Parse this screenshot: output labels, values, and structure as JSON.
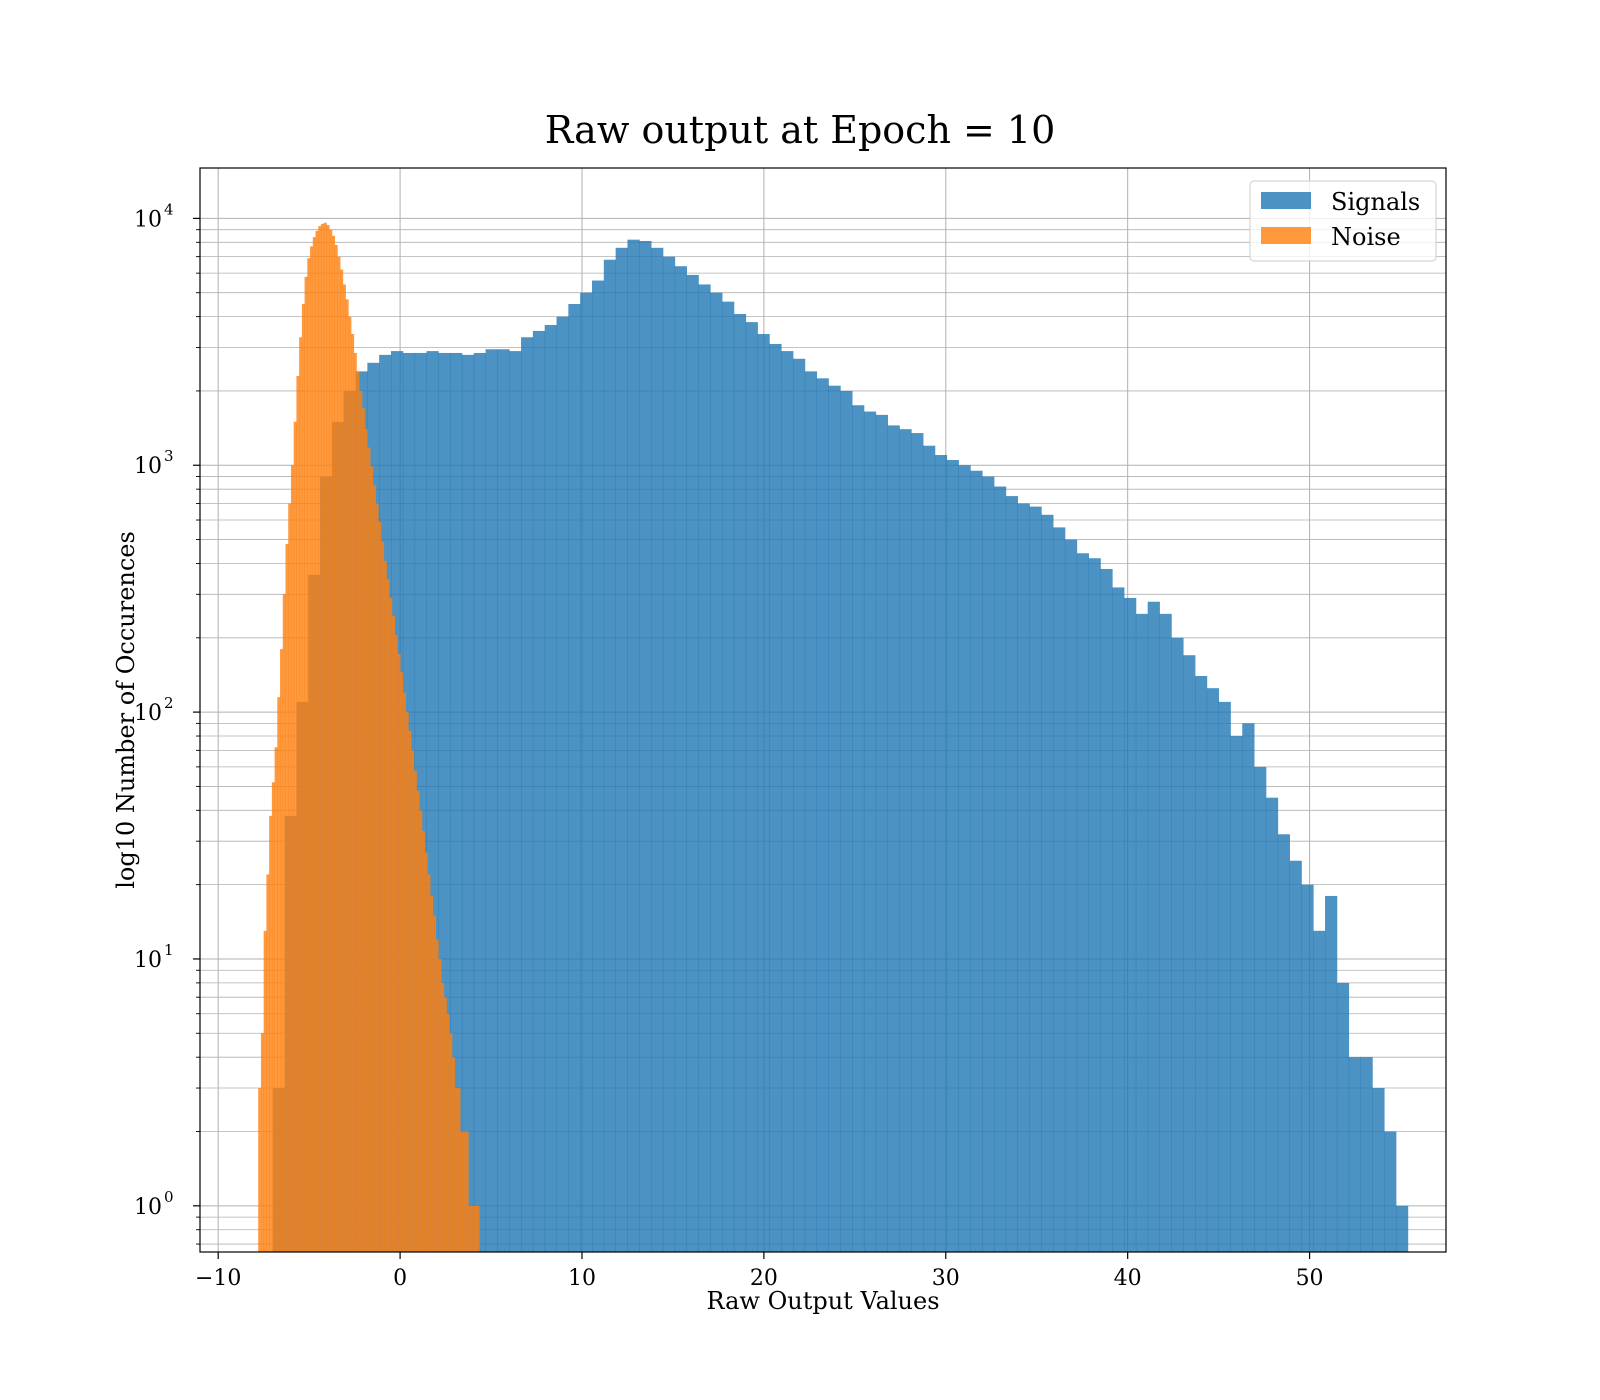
{
  "chart_data": {
    "type": "histogram",
    "title": "Raw output at Epoch = 10",
    "xlabel": "Raw Output Values",
    "ylabel": "log10 Number of Occurences",
    "xlim": [
      -11,
      57.5
    ],
    "ylim": [
      0.65,
      16000
    ],
    "yscale": "log",
    "grid": true,
    "legend_position": "top-right",
    "x_ticks": [
      -10,
      0,
      10,
      20,
      30,
      40,
      50
    ],
    "y_ticks": [
      {
        "value": 1,
        "base": "10",
        "exp": "0"
      },
      {
        "value": 10,
        "base": "10",
        "exp": "1"
      },
      {
        "value": 100,
        "base": "10",
        "exp": "2"
      },
      {
        "value": 1000,
        "base": "10",
        "exp": "3"
      },
      {
        "value": 10000,
        "base": "10",
        "exp": "4"
      }
    ],
    "series": [
      {
        "name": "Signals",
        "color": "#1f77b4",
        "opacity": 0.8,
        "bins": [
          [
            -7.0,
            3
          ],
          [
            -6.35,
            38
          ],
          [
            -5.7,
            110
          ],
          [
            -5.05,
            360
          ],
          [
            -4.4,
            900
          ],
          [
            -3.75,
            1500
          ],
          [
            -3.1,
            2000
          ],
          [
            -2.45,
            2400
          ],
          [
            -1.8,
            2600
          ],
          [
            -1.15,
            2800
          ],
          [
            -0.5,
            2900
          ],
          [
            0.15,
            2850
          ],
          [
            0.8,
            2850
          ],
          [
            1.45,
            2900
          ],
          [
            2.1,
            2850
          ],
          [
            2.75,
            2850
          ],
          [
            3.4,
            2800
          ],
          [
            4.05,
            2850
          ],
          [
            4.7,
            2950
          ],
          [
            5.35,
            2950
          ],
          [
            6.0,
            2900
          ],
          [
            6.65,
            3300
          ],
          [
            7.3,
            3500
          ],
          [
            7.95,
            3700
          ],
          [
            8.6,
            4000
          ],
          [
            9.25,
            4500
          ],
          [
            9.9,
            5000
          ],
          [
            10.55,
            5600
          ],
          [
            11.2,
            6800
          ],
          [
            11.85,
            7600
          ],
          [
            12.5,
            8200
          ],
          [
            13.15,
            8100
          ],
          [
            13.8,
            7600
          ],
          [
            14.45,
            7000
          ],
          [
            15.1,
            6400
          ],
          [
            15.75,
            5900
          ],
          [
            16.4,
            5400
          ],
          [
            17.05,
            5000
          ],
          [
            17.7,
            4600
          ],
          [
            18.35,
            4100
          ],
          [
            19.0,
            3800
          ],
          [
            19.65,
            3400
          ],
          [
            20.3,
            3100
          ],
          [
            20.95,
            2900
          ],
          [
            21.6,
            2700
          ],
          [
            22.25,
            2400
          ],
          [
            22.9,
            2250
          ],
          [
            23.55,
            2100
          ],
          [
            24.2,
            2000
          ],
          [
            24.85,
            1750
          ],
          [
            25.5,
            1650
          ],
          [
            26.15,
            1600
          ],
          [
            26.8,
            1450
          ],
          [
            27.45,
            1400
          ],
          [
            28.1,
            1350
          ],
          [
            28.75,
            1200
          ],
          [
            29.4,
            1100
          ],
          [
            30.05,
            1050
          ],
          [
            30.7,
            1000
          ],
          [
            31.35,
            950
          ],
          [
            32.0,
            900
          ],
          [
            32.65,
            820
          ],
          [
            33.3,
            750
          ],
          [
            33.95,
            700
          ],
          [
            34.6,
            680
          ],
          [
            35.25,
            630
          ],
          [
            35.9,
            560
          ],
          [
            36.55,
            500
          ],
          [
            37.2,
            440
          ],
          [
            37.85,
            420
          ],
          [
            38.5,
            380
          ],
          [
            39.15,
            320
          ],
          [
            39.8,
            290
          ],
          [
            40.45,
            250
          ],
          [
            41.1,
            280
          ],
          [
            41.75,
            250
          ],
          [
            42.4,
            200
          ],
          [
            43.05,
            170
          ],
          [
            43.7,
            140
          ],
          [
            44.35,
            125
          ],
          [
            45.0,
            110
          ],
          [
            45.65,
            80
          ],
          [
            46.3,
            90
          ],
          [
            46.95,
            60
          ],
          [
            47.6,
            45
          ],
          [
            48.25,
            32
          ],
          [
            48.9,
            25
          ],
          [
            49.55,
            20
          ],
          [
            50.2,
            13
          ],
          [
            50.85,
            18
          ],
          [
            51.5,
            8
          ],
          [
            52.15,
            4
          ],
          [
            52.8,
            4
          ],
          [
            53.45,
            3
          ],
          [
            54.1,
            2
          ],
          [
            54.75,
            1
          ]
        ]
      },
      {
        "name": "Noise",
        "color": "#ff7f0e",
        "opacity": 0.8,
        "bins": [
          [
            -7.8,
            3
          ],
          [
            -7.65,
            5
          ],
          [
            -7.5,
            13
          ],
          [
            -7.35,
            22
          ],
          [
            -7.2,
            38
          ],
          [
            -7.05,
            52
          ],
          [
            -6.9,
            72
          ],
          [
            -6.75,
            115
          ],
          [
            -6.6,
            180
          ],
          [
            -6.45,
            300
          ],
          [
            -6.3,
            480
          ],
          [
            -6.15,
            700
          ],
          [
            -6.0,
            1000
          ],
          [
            -5.85,
            1500
          ],
          [
            -5.7,
            2300
          ],
          [
            -5.55,
            3300
          ],
          [
            -5.4,
            4500
          ],
          [
            -5.25,
            5800
          ],
          [
            -5.1,
            6900
          ],
          [
            -4.95,
            7700
          ],
          [
            -4.8,
            8400
          ],
          [
            -4.65,
            8900
          ],
          [
            -4.5,
            9300
          ],
          [
            -4.35,
            9500
          ],
          [
            -4.2,
            9600
          ],
          [
            -4.05,
            9400
          ],
          [
            -3.9,
            9000
          ],
          [
            -3.75,
            8500
          ],
          [
            -3.6,
            7800
          ],
          [
            -3.45,
            7000
          ],
          [
            -3.3,
            6200
          ],
          [
            -3.15,
            5400
          ],
          [
            -3.0,
            4700
          ],
          [
            -2.85,
            4000
          ],
          [
            -2.7,
            3400
          ],
          [
            -2.55,
            2850
          ],
          [
            -2.4,
            2400
          ],
          [
            -2.25,
            2000
          ],
          [
            -2.1,
            1700
          ],
          [
            -1.95,
            1400
          ],
          [
            -1.8,
            1180
          ],
          [
            -1.65,
            990
          ],
          [
            -1.5,
            830
          ],
          [
            -1.35,
            700
          ],
          [
            -1.2,
            590
          ],
          [
            -1.05,
            490
          ],
          [
            -0.9,
            410
          ],
          [
            -0.75,
            345
          ],
          [
            -0.6,
            290
          ],
          [
            -0.45,
            245
          ],
          [
            -0.3,
            205
          ],
          [
            -0.15,
            172
          ],
          [
            0.0,
            145
          ],
          [
            0.15,
            120
          ],
          [
            0.3,
            100
          ],
          [
            0.45,
            84
          ],
          [
            0.6,
            70
          ],
          [
            0.75,
            58
          ],
          [
            0.9,
            48
          ],
          [
            1.05,
            40
          ],
          [
            1.2,
            33
          ],
          [
            1.35,
            27
          ],
          [
            1.5,
            22
          ],
          [
            1.65,
            18
          ],
          [
            1.8,
            15
          ],
          [
            1.95,
            12
          ],
          [
            2.1,
            10
          ],
          [
            2.25,
            8
          ],
          [
            2.4,
            7
          ],
          [
            2.55,
            6
          ],
          [
            2.7,
            5
          ],
          [
            2.85,
            4
          ],
          [
            3.0,
            3
          ],
          [
            3.15,
            3
          ],
          [
            3.3,
            2
          ],
          [
            3.45,
            2
          ],
          [
            3.6,
            2
          ],
          [
            3.75,
            1
          ],
          [
            3.9,
            1
          ],
          [
            4.05,
            1
          ],
          [
            4.2,
            1
          ]
        ]
      }
    ]
  }
}
